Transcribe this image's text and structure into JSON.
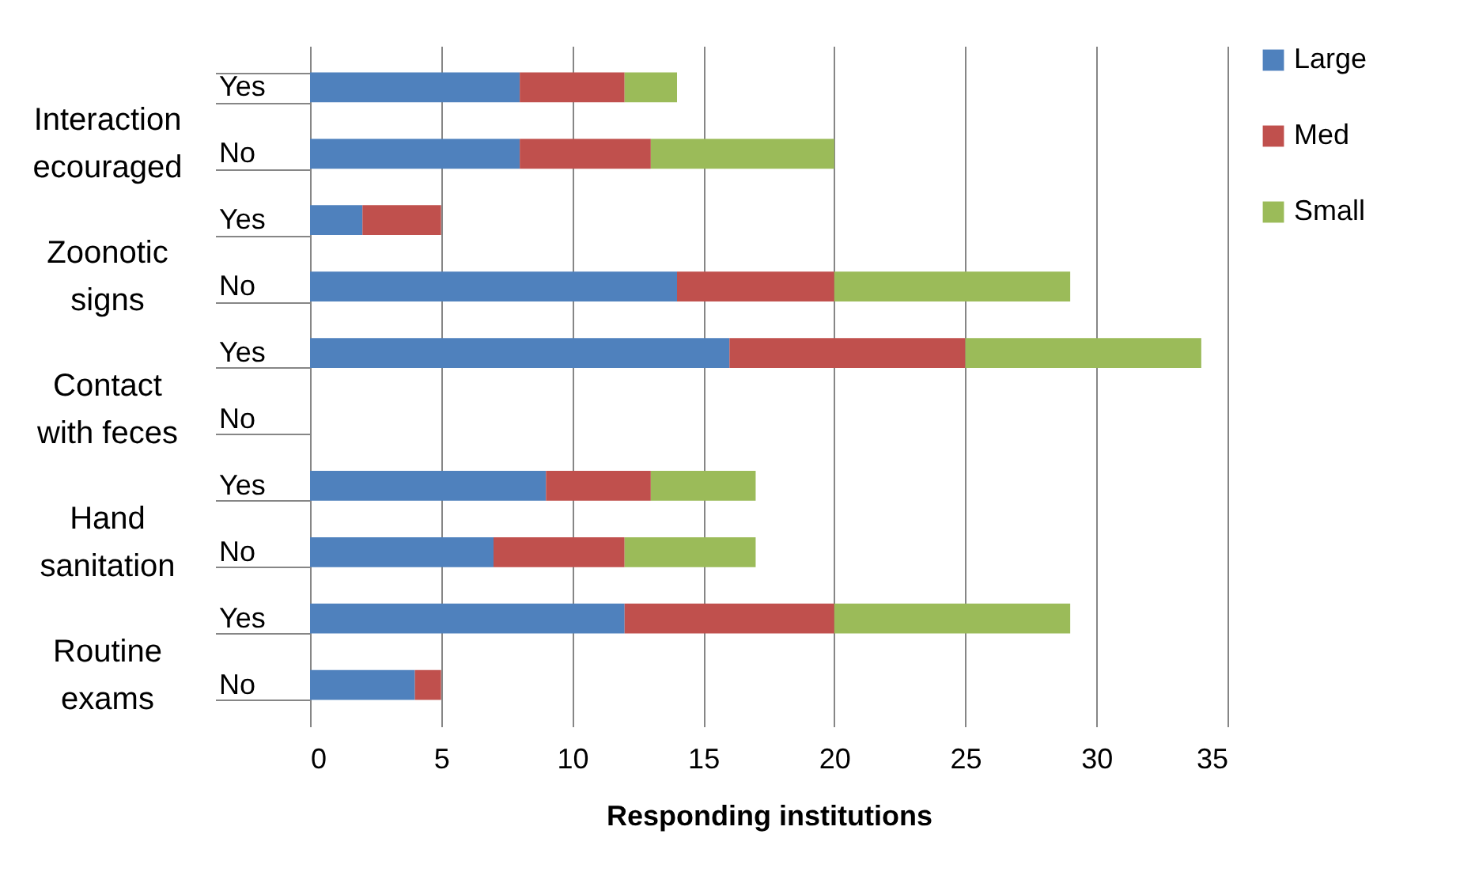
{
  "chart_data": {
    "type": "bar",
    "orientation": "horizontal",
    "stacked": true,
    "categories": [
      "Yes",
      "No",
      "Yes",
      "No",
      "Yes",
      "No",
      "Yes",
      "No",
      "Yes",
      "No"
    ],
    "series": [
      {
        "name": "Large",
        "color": "#4f81bd",
        "values": [
          8,
          8,
          2,
          14,
          16,
          0,
          9,
          7,
          12,
          4
        ]
      },
      {
        "name": "Med",
        "color": "#c0504d",
        "values": [
          4,
          5,
          3,
          6,
          9,
          0,
          4,
          5,
          8,
          1
        ]
      },
      {
        "name": "Small",
        "color": "#9bbb59",
        "values": [
          2,
          7,
          0,
          9,
          9,
          0,
          4,
          5,
          9,
          0
        ]
      }
    ],
    "annotations": [
      "Interaction\necouraged",
      "Zoonotic\nsigns",
      "Contact\nwith feces",
      "Hand\nsanitation",
      "Routine\nexams"
    ],
    "xlabel": "Responding institutions",
    "xlim": [
      0,
      35
    ],
    "xticks": [
      0,
      5,
      10,
      15,
      20,
      25,
      30,
      35
    ],
    "grid": "x",
    "legend": "right"
  }
}
